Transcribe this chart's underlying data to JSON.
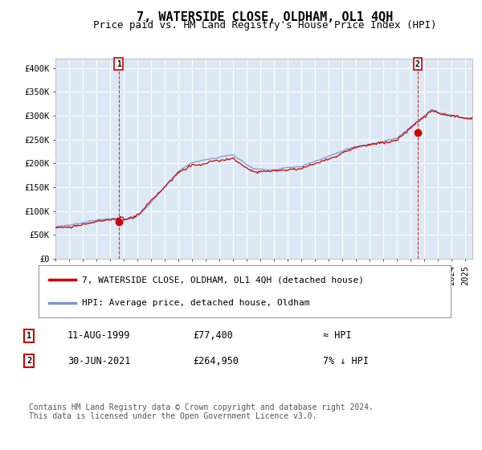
{
  "title": "7, WATERSIDE CLOSE, OLDHAM, OL1 4QH",
  "subtitle": "Price paid vs. HM Land Registry's House Price Index (HPI)",
  "ylabel_ticks": [
    "£0",
    "£50K",
    "£100K",
    "£150K",
    "£200K",
    "£250K",
    "£300K",
    "£350K",
    "£400K"
  ],
  "ytick_vals": [
    0,
    50000,
    100000,
    150000,
    200000,
    250000,
    300000,
    350000,
    400000
  ],
  "ylim": [
    0,
    420000
  ],
  "xlim_start": 1995.0,
  "xlim_end": 2025.5,
  "sale1_date": 1999.62,
  "sale1_price": 77400,
  "sale1_label": "1",
  "sale1_text": "11-AUG-1999",
  "sale1_price_text": "£77,400",
  "sale1_hpi_text": "≈ HPI",
  "sale2_date": 2021.5,
  "sale2_price": 264950,
  "sale2_label": "2",
  "sale2_text": "30-JUN-2021",
  "sale2_price_text": "£264,950",
  "sale2_hpi_text": "7% ↓ HPI",
  "legend_line1": "7, WATERSIDE CLOSE, OLDHAM, OL1 4QH (detached house)",
  "legend_line2": "HPI: Average price, detached house, Oldham",
  "footer": "Contains HM Land Registry data © Crown copyright and database right 2024.\nThis data is licensed under the Open Government Licence v3.0.",
  "hpi_line_color": "#7799cc",
  "sale_line_color": "#cc0000",
  "sale_dot_color": "#cc0000",
  "annotation_box_color": "#cc0000",
  "plot_bg_color": "#dce9f5",
  "background_color": "#ffffff",
  "grid_color": "#ffffff",
  "title_fontsize": 11,
  "subtitle_fontsize": 9,
  "tick_fontsize": 7.5,
  "legend_fontsize": 8,
  "footer_fontsize": 7
}
